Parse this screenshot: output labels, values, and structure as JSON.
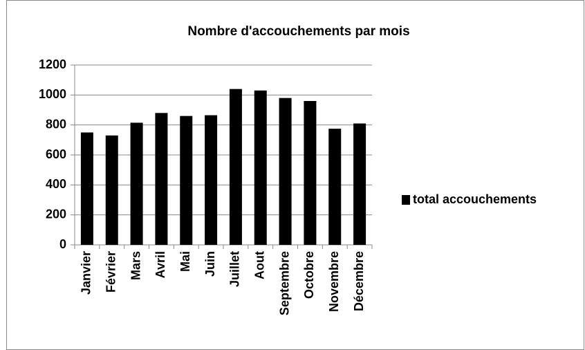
{
  "chart_data": {
    "type": "bar",
    "title": "Nombre d'accouchements par mois",
    "categories": [
      "Janvier",
      "Février",
      "Mars",
      "Avril",
      "Mai",
      "Juin",
      "Juillet",
      "Aout",
      "Septembre",
      "Octobre",
      "Novembre",
      "Décembre"
    ],
    "series": [
      {
        "name": "total accouchements",
        "color": "#000000",
        "values": [
          750,
          730,
          815,
          880,
          860,
          865,
          1040,
          1030,
          980,
          960,
          775,
          810
        ]
      }
    ],
    "ylim": [
      0,
      1200
    ],
    "yticks": [
      0,
      200,
      400,
      600,
      800,
      1000,
      1200
    ],
    "grid": true,
    "legend": "right"
  }
}
